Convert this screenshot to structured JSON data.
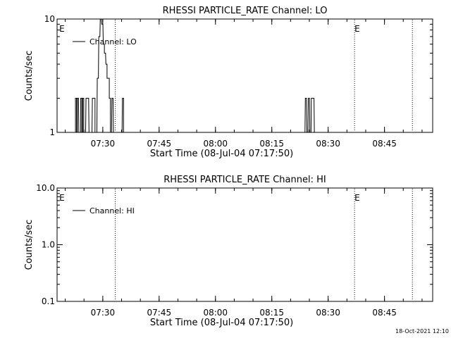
{
  "footer": {
    "timestamp": "18-Oct-2021 12:10"
  },
  "chart_data": [
    {
      "type": "line",
      "title": "RHESSI PARTICLE_RATE Channel: LO",
      "xlabel": "Start Time (08-Jul-04 07:17:50)",
      "ylabel": "Counts/sec",
      "x_units": "minutes since 07:17:50",
      "xlim": [
        0,
        100
      ],
      "ylim": [
        1,
        10
      ],
      "yscale": "log",
      "x_ticks": [
        {
          "x": 12.17,
          "label": "07:30"
        },
        {
          "x": 27.17,
          "label": "07:45"
        },
        {
          "x": 42.17,
          "label": "08:00"
        },
        {
          "x": 57.17,
          "label": "08:15"
        },
        {
          "x": 72.17,
          "label": "08:30"
        },
        {
          "x": 87.17,
          "label": "08:45"
        }
      ],
      "y_ticks": [
        {
          "y": 1,
          "label": "1"
        },
        {
          "y": 10,
          "label": "10"
        }
      ],
      "legend": {
        "label": "Channel: LO",
        "position": "top-left"
      },
      "markers": [
        {
          "x": 0.2,
          "label": "E",
          "line": false
        },
        {
          "x": 15.5,
          "label": "",
          "line": true
        },
        {
          "x": 79.2,
          "label": "E",
          "line": true
        },
        {
          "x": 94.6,
          "label": "",
          "line": true
        }
      ],
      "grid": false,
      "series": [
        {
          "name": "Channel: LO",
          "x": [
            4.4,
            4.9,
            5.4,
            5.8,
            6.3,
            6.8,
            7.3,
            7.7,
            8.1,
            8.5,
            9.0,
            9.4,
            9.8,
            10.3,
            10.7,
            11.1,
            11.5,
            11.9,
            12.3,
            12.6,
            13.0,
            13.3,
            13.6,
            13.9,
            14.2,
            14.6,
            15.0,
            15.3,
            15.6,
            15.9,
            16.3,
            16.7,
            17.0,
            17.4,
            17.7,
            18.0,
            18.4,
            65.7,
            66.1,
            66.5,
            66.9,
            67.3,
            67.7,
            68.1,
            68.5,
            68.9
          ],
          "y": [
            1,
            2,
            2,
            1,
            2,
            2,
            1,
            2,
            2,
            1,
            1,
            2,
            2,
            1,
            3,
            7,
            10,
            9,
            6,
            5,
            4,
            3,
            3,
            2,
            1,
            2,
            1,
            1,
            1,
            1,
            1,
            1,
            1,
            2,
            1,
            1,
            1,
            1,
            2,
            1,
            2,
            1,
            2,
            2,
            1,
            1
          ]
        }
      ]
    },
    {
      "type": "line",
      "title": "RHESSI PARTICLE_RATE Channel: HI",
      "xlabel": "Start Time (08-Jul-04 07:17:50)",
      "ylabel": "Counts/sec",
      "x_units": "minutes since 07:17:50",
      "xlim": [
        0,
        100
      ],
      "ylim": [
        0.1,
        10
      ],
      "yscale": "log",
      "x_ticks": [
        {
          "x": 12.17,
          "label": "07:30"
        },
        {
          "x": 27.17,
          "label": "07:45"
        },
        {
          "x": 42.17,
          "label": "08:00"
        },
        {
          "x": 57.17,
          "label": "08:15"
        },
        {
          "x": 72.17,
          "label": "08:30"
        },
        {
          "x": 87.17,
          "label": "08:45"
        }
      ],
      "y_ticks": [
        {
          "y": 0.1,
          "label": "0.1"
        },
        {
          "y": 1,
          "label": "1.0"
        },
        {
          "y": 10,
          "label": "10.0"
        }
      ],
      "legend": {
        "label": "Channel: HI",
        "position": "top-left"
      },
      "markers": [
        {
          "x": 0.2,
          "label": "E",
          "line": false
        },
        {
          "x": 15.5,
          "label": "",
          "line": true
        },
        {
          "x": 79.2,
          "label": "E",
          "line": true
        },
        {
          "x": 94.6,
          "label": "",
          "line": true
        }
      ],
      "grid": false,
      "series": [
        {
          "name": "Channel: HI",
          "x": [],
          "y": []
        }
      ]
    }
  ]
}
